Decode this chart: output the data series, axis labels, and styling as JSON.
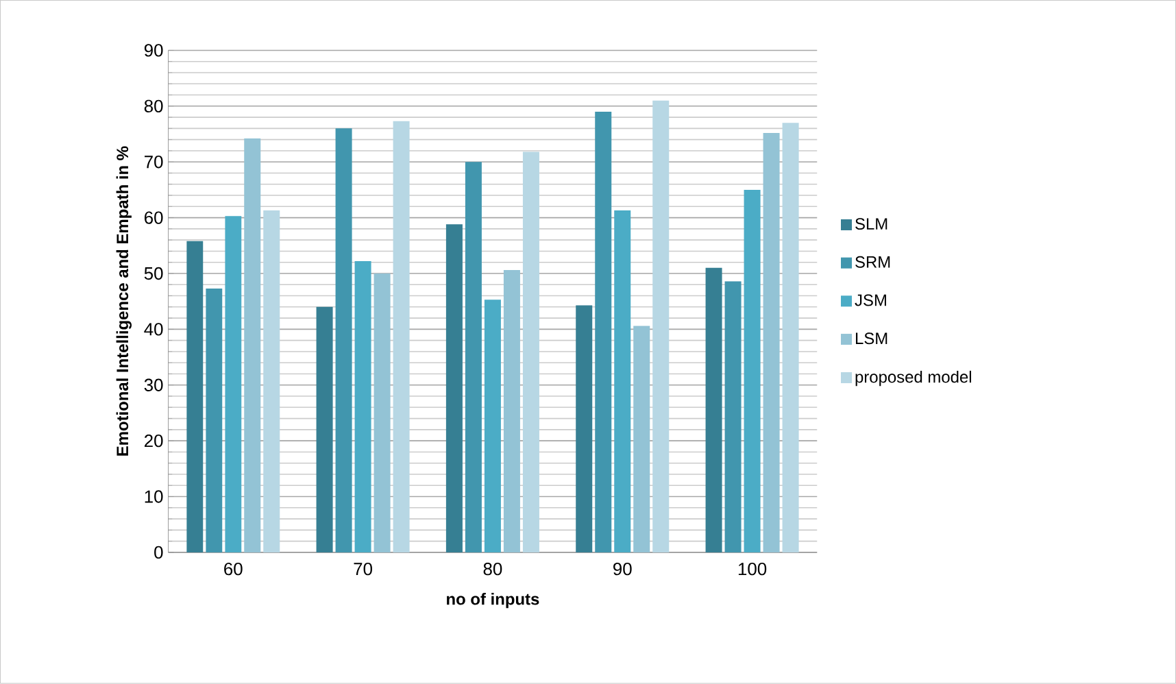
{
  "chart_data": {
    "type": "bar",
    "xlabel": "no of inputs",
    "ylabel": "Emotional Intelligence and Empath in %",
    "categories": [
      "60",
      "70",
      "80",
      "90",
      "100"
    ],
    "series": [
      {
        "name": "SLM",
        "color": "#367f93",
        "values": [
          55.8,
          44,
          58.8,
          44.3,
          51
        ]
      },
      {
        "name": "SRM",
        "color": "#4196ae",
        "values": [
          47.3,
          76,
          70,
          79,
          48.6
        ]
      },
      {
        "name": "JSM",
        "color": "#4bacc6",
        "values": [
          60.3,
          52.2,
          45.3,
          61.3,
          65
        ]
      },
      {
        "name": "LSM",
        "color": "#93c3d5",
        "values": [
          74.2,
          50,
          50.6,
          40.6,
          75.2
        ]
      },
      {
        "name": "proposed model",
        "color": "#b7d7e4",
        "values": [
          61.3,
          77.3,
          71.8,
          81,
          77
        ]
      }
    ],
    "ylim": [
      0,
      90
    ],
    "yticks": [
      0,
      10,
      20,
      30,
      40,
      50,
      60,
      70,
      80,
      90
    ],
    "grid": "y",
    "legend": "right"
  }
}
